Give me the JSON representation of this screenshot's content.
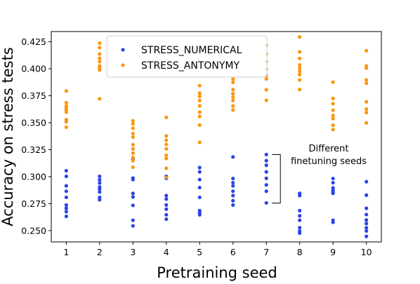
{
  "chart_data": {
    "type": "scatter",
    "title": "",
    "xlabel": "Pretraining seed",
    "ylabel": "Accuracy on stress tests",
    "xlim": [
      0.55,
      10.45
    ],
    "ylim": [
      0.2395,
      0.4345
    ],
    "xticks": [
      1,
      2,
      3,
      4,
      5,
      6,
      7,
      8,
      9,
      10
    ],
    "xtick_labels": [
      "1",
      "2",
      "3",
      "4",
      "5",
      "6",
      "7",
      "8",
      "9",
      "10"
    ],
    "yticks": [
      0.25,
      0.275,
      0.3,
      0.325,
      0.35,
      0.375,
      0.4,
      0.425
    ],
    "ytick_labels": [
      "0.250",
      "0.275",
      "0.300",
      "0.325",
      "0.350",
      "0.375",
      "0.400",
      "0.425"
    ],
    "grid": false,
    "legend": {
      "position": "top-left",
      "entries": [
        "STRESS_NUMERICAL",
        "STRESS_ANTONYMY"
      ]
    },
    "annotation": {
      "text_lines": [
        "Different",
        "finetuning seeds"
      ],
      "bracket_x": 7,
      "bracket_y_range": [
        0.2755,
        0.3205
      ]
    },
    "series": [
      {
        "name": "STRESS_NUMERICAL",
        "color": "#2b45e6",
        "points": [
          [
            1,
            0.3055
          ],
          [
            1,
            0.3003
          ],
          [
            1,
            0.2915
          ],
          [
            1,
            0.2865
          ],
          [
            1,
            0.2808
          ],
          [
            1,
            0.2737
          ],
          [
            1,
            0.2707
          ],
          [
            1,
            0.2676
          ],
          [
            1,
            0.2632
          ],
          [
            2,
            0.3003
          ],
          [
            2,
            0.2971
          ],
          [
            2,
            0.2941
          ],
          [
            2,
            0.2904
          ],
          [
            2,
            0.2885
          ],
          [
            2,
            0.2858
          ],
          [
            2,
            0.2808
          ],
          [
            2,
            0.2786
          ],
          [
            3,
            0.3163
          ],
          [
            3,
            0.2987
          ],
          [
            3,
            0.2973
          ],
          [
            3,
            0.2845
          ],
          [
            3,
            0.2812
          ],
          [
            3,
            0.2734
          ],
          [
            3,
            0.2596
          ],
          [
            3,
            0.2544
          ],
          [
            4,
            0.3003
          ],
          [
            4,
            0.2985
          ],
          [
            4,
            0.2824
          ],
          [
            4,
            0.2792
          ],
          [
            4,
            0.2738
          ],
          [
            4,
            0.2699
          ],
          [
            4,
            0.2647
          ],
          [
            4,
            0.2606
          ],
          [
            5,
            0.3084
          ],
          [
            5,
            0.3044
          ],
          [
            5,
            0.2973
          ],
          [
            5,
            0.2899
          ],
          [
            5,
            0.2808
          ],
          [
            5,
            0.2685
          ],
          [
            5,
            0.2666
          ],
          [
            5,
            0.2647
          ],
          [
            6,
            0.3183
          ],
          [
            6,
            0.2983
          ],
          [
            6,
            0.2944
          ],
          [
            6,
            0.2915
          ],
          [
            6,
            0.2865
          ],
          [
            6,
            0.2825
          ],
          [
            6,
            0.2777
          ],
          [
            6,
            0.2737
          ],
          [
            7,
            0.3205
          ],
          [
            7,
            0.3148
          ],
          [
            7,
            0.3106
          ],
          [
            7,
            0.3044
          ],
          [
            7,
            0.2985
          ],
          [
            7,
            0.2924
          ],
          [
            7,
            0.2865
          ],
          [
            7,
            0.2757
          ],
          [
            8,
            0.2845
          ],
          [
            8,
            0.2825
          ],
          [
            8,
            0.2685
          ],
          [
            8,
            0.2637
          ],
          [
            8,
            0.2596
          ],
          [
            8,
            0.2527
          ],
          [
            8,
            0.2496
          ],
          [
            8,
            0.2477
          ],
          [
            9,
            0.2983
          ],
          [
            9,
            0.2944
          ],
          [
            9,
            0.2896
          ],
          [
            9,
            0.2876
          ],
          [
            9,
            0.2857
          ],
          [
            9,
            0.2846
          ],
          [
            9,
            0.2596
          ],
          [
            9,
            0.2577
          ],
          [
            10,
            0.2953
          ],
          [
            10,
            0.2829
          ],
          [
            10,
            0.2707
          ],
          [
            10,
            0.2649
          ],
          [
            10,
            0.2598
          ],
          [
            10,
            0.2565
          ],
          [
            10,
            0.2526
          ],
          [
            10,
            0.2496
          ],
          [
            10,
            0.2446
          ]
        ]
      },
      {
        "name": "STRESS_ANTONYMY",
        "color": "#fb9610",
        "points": [
          [
            1,
            0.3794
          ],
          [
            1,
            0.3686
          ],
          [
            1,
            0.3656
          ],
          [
            1,
            0.3637
          ],
          [
            1,
            0.3618
          ],
          [
            1,
            0.3598
          ],
          [
            1,
            0.3529
          ],
          [
            1,
            0.3508
          ],
          [
            1,
            0.3458
          ],
          [
            2,
            0.4237
          ],
          [
            2,
            0.4196
          ],
          [
            2,
            0.4137
          ],
          [
            2,
            0.4098
          ],
          [
            2,
            0.4066
          ],
          [
            2,
            0.4026
          ],
          [
            2,
            0.4006
          ],
          [
            2,
            0.3988
          ],
          [
            2,
            0.3722
          ],
          [
            3,
            0.3518
          ],
          [
            3,
            0.3489
          ],
          [
            3,
            0.3449
          ],
          [
            3,
            0.3399
          ],
          [
            3,
            0.3366
          ],
          [
            3,
            0.3296
          ],
          [
            3,
            0.3258
          ],
          [
            3,
            0.3218
          ],
          [
            3,
            0.3178
          ],
          [
            3,
            0.3148
          ],
          [
            3,
            0.3088
          ],
          [
            4,
            0.3549
          ],
          [
            4,
            0.3378
          ],
          [
            4,
            0.3338
          ],
          [
            4,
            0.3298
          ],
          [
            4,
            0.3258
          ],
          [
            4,
            0.3198
          ],
          [
            4,
            0.3168
          ],
          [
            4,
            0.3078
          ],
          [
            4,
            0.2993
          ],
          [
            5,
            0.3844
          ],
          [
            5,
            0.3774
          ],
          [
            5,
            0.3744
          ],
          [
            5,
            0.3706
          ],
          [
            5,
            0.3656
          ],
          [
            5,
            0.3598
          ],
          [
            5,
            0.3558
          ],
          [
            5,
            0.3478
          ],
          [
            5,
            0.3318
          ],
          [
            6,
            0.3904
          ],
          [
            6,
            0.3874
          ],
          [
            6,
            0.3807
          ],
          [
            6,
            0.3769
          ],
          [
            6,
            0.3736
          ],
          [
            6,
            0.3706
          ],
          [
            6,
            0.3655
          ],
          [
            6,
            0.3618
          ],
          [
            7,
            0.4218
          ],
          [
            7,
            0.4137
          ],
          [
            7,
            0.4066
          ],
          [
            7,
            0.3997
          ],
          [
            7,
            0.3936
          ],
          [
            7,
            0.3906
          ],
          [
            7,
            0.3806
          ],
          [
            7,
            0.3707
          ],
          [
            8,
            0.4295
          ],
          [
            8,
            0.4157
          ],
          [
            8,
            0.4096
          ],
          [
            8,
            0.4036
          ],
          [
            8,
            0.4006
          ],
          [
            8,
            0.3976
          ],
          [
            8,
            0.3946
          ],
          [
            8,
            0.3897
          ],
          [
            8,
            0.3808
          ],
          [
            9,
            0.3876
          ],
          [
            9,
            0.3725
          ],
          [
            9,
            0.3677
          ],
          [
            9,
            0.3616
          ],
          [
            9,
            0.3568
          ],
          [
            9,
            0.3538
          ],
          [
            9,
            0.3477
          ],
          [
            9,
            0.3437
          ],
          [
            10,
            0.4167
          ],
          [
            10,
            0.4027
          ],
          [
            10,
            0.4006
          ],
          [
            10,
            0.3897
          ],
          [
            10,
            0.3866
          ],
          [
            10,
            0.3694
          ],
          [
            10,
            0.3626
          ],
          [
            10,
            0.3594
          ],
          [
            10,
            0.3498
          ]
        ]
      }
    ]
  }
}
